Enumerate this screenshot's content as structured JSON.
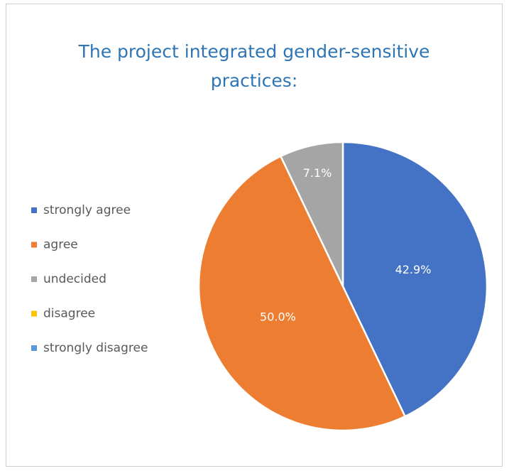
{
  "chart_data": {
    "type": "pie",
    "title": "The project integrated gender-sensitive practices:",
    "categories": [
      "strongly agree",
      "agree",
      "undecided",
      "disagree",
      "strongly disagree"
    ],
    "values": [
      42.9,
      50.0,
      7.1,
      0,
      0
    ],
    "value_labels": [
      "42.9%",
      "50.0%",
      "7.1%",
      null,
      null
    ],
    "colors": [
      "#4472c4",
      "#ed7d31",
      "#a5a5a5",
      "#ffc000",
      "#5b9bd5"
    ],
    "legend": "left"
  }
}
